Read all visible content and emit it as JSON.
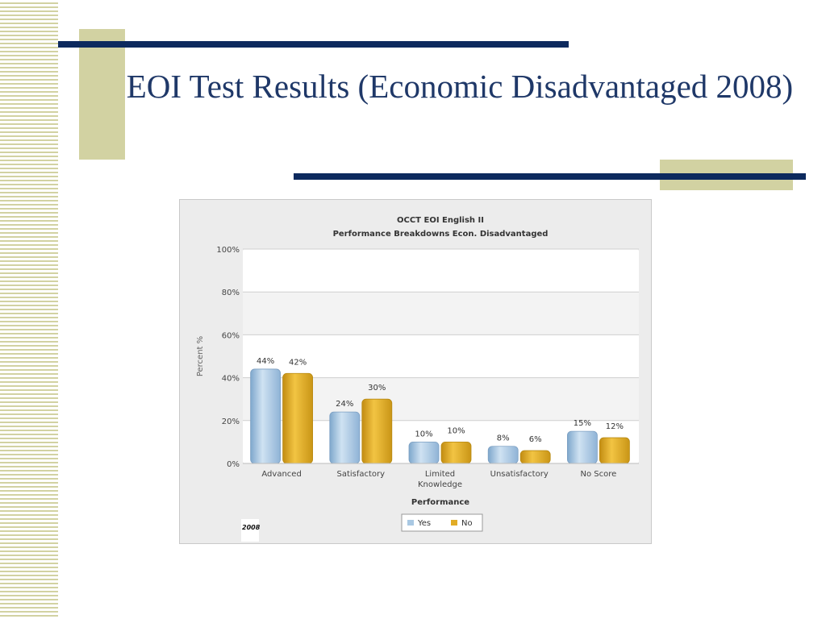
{
  "slide": {
    "title": "EOI Test Results (Economic Disadvantaged 2008)"
  },
  "colors": {
    "navy": "#0d2a5e",
    "khaki": "#d2d2a2",
    "title": "#1f3868",
    "series_yes": "#a9c8e3",
    "series_no": "#e1ac26"
  },
  "chart_data": {
    "type": "bar",
    "title": "OCCT EOI English II",
    "subtitle": "Performance Breakdowns Econ. Disadvantaged",
    "xlabel": "Performance",
    "ylabel": "Percent %",
    "ylim": [
      0,
      100
    ],
    "yticks": [
      "0%",
      "20%",
      "40%",
      "60%",
      "80%",
      "100%"
    ],
    "categories": [
      "Advanced",
      "Satisfactory",
      "Limited Knowledge",
      "Unsatisfactory",
      "No Score"
    ],
    "series": [
      {
        "name": "Yes",
        "values": [
          44,
          24,
          10,
          8,
          15
        ],
        "labels": [
          "44%",
          "24%",
          "10%",
          "8%",
          "15%"
        ]
      },
      {
        "name": "No",
        "values": [
          42,
          30,
          10,
          6,
          12
        ],
        "labels": [
          "42%",
          "30%",
          "10%",
          "6%",
          "12%"
        ]
      }
    ],
    "grid": true,
    "legend": "bottom-center",
    "corner_label": "2008"
  }
}
